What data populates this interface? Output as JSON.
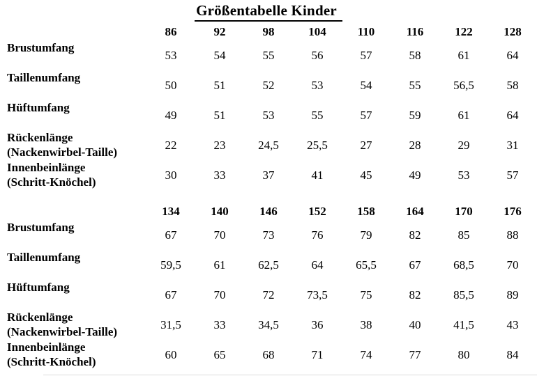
{
  "page": {
    "title": "Größentabelle Kinder",
    "background_color": "#ffffff",
    "text_color": "#000000"
  },
  "table": {
    "unit_note": "",
    "sections": [
      {
        "sizes": [
          "86",
          "92",
          "98",
          "104",
          "110",
          "116",
          "122",
          "128"
        ],
        "rows": [
          {
            "label": "Brustumfang",
            "sublabel": "",
            "values": [
              "53",
              "54",
              "55",
              "56",
              "57",
              "58",
              "61",
              "64"
            ]
          },
          {
            "label": "Taillenumfang",
            "sublabel": "",
            "values": [
              "50",
              "51",
              "52",
              "53",
              "54",
              "55",
              "56,5",
              "58"
            ]
          },
          {
            "label": "Hüftumfang",
            "sublabel": "",
            "values": [
              "49",
              "51",
              "53",
              "55",
              "57",
              "59",
              "61",
              "64"
            ]
          },
          {
            "label": "Rückenlänge",
            "sublabel": "(Nackenwirbel-Taille)",
            "values": [
              "22",
              "23",
              "24,5",
              "25,5",
              "27",
              "28",
              "29",
              "31"
            ]
          },
          {
            "label": "Innenbeinlänge",
            "sublabel": "(Schritt-Knöchel)",
            "values": [
              "30",
              "33",
              "37",
              "41",
              "45",
              "49",
              "53",
              "57"
            ]
          }
        ]
      },
      {
        "sizes": [
          "134",
          "140",
          "146",
          "152",
          "158",
          "164",
          "170",
          "176"
        ],
        "rows": [
          {
            "label": "Brustumfang",
            "sublabel": "",
            "values": [
              "67",
              "70",
              "73",
              "76",
              "79",
              "82",
              "85",
              "88"
            ]
          },
          {
            "label": "Taillenumfang",
            "sublabel": "",
            "values": [
              "59,5",
              "61",
              "62,5",
              "64",
              "65,5",
              "67",
              "68,5",
              "70"
            ]
          },
          {
            "label": "Hüftumfang",
            "sublabel": "",
            "values": [
              "67",
              "70",
              "72",
              "73,5",
              "75",
              "82",
              "85,5",
              "89"
            ]
          },
          {
            "label": "Rückenlänge",
            "sublabel": "(Nackenwirbel-Taille)",
            "values": [
              "31,5",
              "33",
              "34,5",
              "36",
              "38",
              "40",
              "41,5",
              "43"
            ]
          },
          {
            "label": "Innenbeinlänge",
            "sublabel": "(Schritt-Knöchel)",
            "values": [
              "60",
              "65",
              "68",
              "71",
              "74",
              "77",
              "80",
              "84"
            ]
          }
        ]
      }
    ]
  }
}
